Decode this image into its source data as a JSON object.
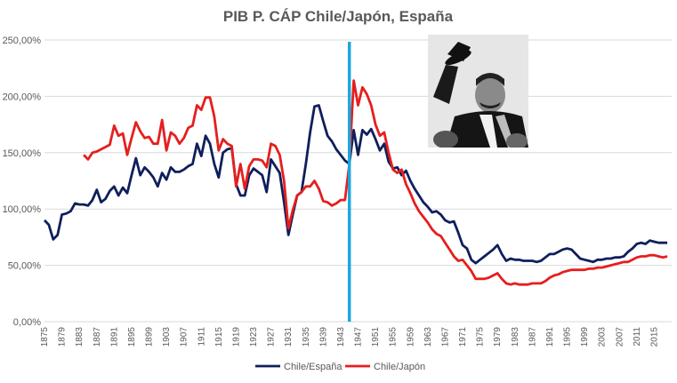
{
  "chart_data": {
    "type": "line",
    "title": "PIB P. CÁP Chile/Japón, España",
    "xlabel": "",
    "ylabel": "",
    "xlim": [
      1875,
      2019
    ],
    "ylim": [
      0,
      2.5
    ],
    "y_ticks": [
      "0,00%",
      "50,00%",
      "100,00%",
      "150,00%",
      "200,00%",
      "250,00%"
    ],
    "y_tick_values": [
      0,
      0.5,
      1.0,
      1.5,
      2.0,
      2.5
    ],
    "x_ticks": [
      "1875",
      "1879",
      "1883",
      "1887",
      "1891",
      "1895",
      "1899",
      "1903",
      "1907",
      "1911",
      "1915",
      "1919",
      "1923",
      "1927",
      "1931",
      "1935",
      "1939",
      "1943",
      "1947",
      "1951",
      "1955",
      "1959",
      "1963",
      "1967",
      "1971",
      "1975",
      "1979",
      "1983",
      "1987",
      "1991",
      "1995",
      "1999",
      "2003",
      "2007",
      "2011",
      "2015"
    ],
    "grid": true,
    "legend_position": "bottom",
    "vertical_marker": {
      "year": 1945,
      "color": "#1FA6DC"
    },
    "series": [
      {
        "name": "Chile/España",
        "color": "#0F1F5C",
        "points": [
          [
            1875,
            0.9
          ],
          [
            1876,
            0.86
          ],
          [
            1877,
            0.73
          ],
          [
            1878,
            0.77
          ],
          [
            1879,
            0.95
          ],
          [
            1880,
            0.96
          ],
          [
            1881,
            0.98
          ],
          [
            1882,
            1.05
          ],
          [
            1883,
            1.04
          ],
          [
            1884,
            1.04
          ],
          [
            1885,
            1.03
          ],
          [
            1886,
            1.08
          ],
          [
            1887,
            1.17
          ],
          [
            1888,
            1.06
          ],
          [
            1889,
            1.09
          ],
          [
            1890,
            1.16
          ],
          [
            1891,
            1.2
          ],
          [
            1892,
            1.12
          ],
          [
            1893,
            1.19
          ],
          [
            1894,
            1.14
          ],
          [
            1895,
            1.3
          ],
          [
            1896,
            1.45
          ],
          [
            1897,
            1.3
          ],
          [
            1898,
            1.37
          ],
          [
            1899,
            1.33
          ],
          [
            1900,
            1.28
          ],
          [
            1901,
            1.2
          ],
          [
            1902,
            1.32
          ],
          [
            1903,
            1.26
          ],
          [
            1904,
            1.37
          ],
          [
            1905,
            1.33
          ],
          [
            1906,
            1.33
          ],
          [
            1907,
            1.35
          ],
          [
            1908,
            1.38
          ],
          [
            1909,
            1.4
          ],
          [
            1910,
            1.58
          ],
          [
            1911,
            1.47
          ],
          [
            1912,
            1.65
          ],
          [
            1913,
            1.58
          ],
          [
            1914,
            1.4
          ],
          [
            1915,
            1.28
          ],
          [
            1916,
            1.5
          ],
          [
            1917,
            1.53
          ],
          [
            1918,
            1.54
          ],
          [
            1919,
            1.22
          ],
          [
            1920,
            1.12
          ],
          [
            1921,
            1.12
          ],
          [
            1922,
            1.3
          ],
          [
            1923,
            1.36
          ],
          [
            1924,
            1.33
          ],
          [
            1925,
            1.3
          ],
          [
            1926,
            1.15
          ],
          [
            1927,
            1.44
          ],
          [
            1928,
            1.38
          ],
          [
            1929,
            1.32
          ],
          [
            1930,
            1.06
          ],
          [
            1931,
            0.77
          ],
          [
            1932,
            0.95
          ],
          [
            1933,
            1.12
          ],
          [
            1934,
            1.15
          ],
          [
            1935,
            1.4
          ],
          [
            1936,
            1.68
          ],
          [
            1937,
            1.91
          ],
          [
            1938,
            1.92
          ],
          [
            1939,
            1.78
          ],
          [
            1940,
            1.65
          ],
          [
            1941,
            1.6
          ],
          [
            1942,
            1.53
          ],
          [
            1943,
            1.48
          ],
          [
            1944,
            1.43
          ],
          [
            1945,
            1.4
          ],
          [
            1946,
            1.7
          ],
          [
            1947,
            1.48
          ],
          [
            1948,
            1.7
          ],
          [
            1949,
            1.66
          ],
          [
            1950,
            1.71
          ],
          [
            1951,
            1.62
          ],
          [
            1952,
            1.52
          ],
          [
            1953,
            1.58
          ],
          [
            1954,
            1.42
          ],
          [
            1955,
            1.36
          ],
          [
            1956,
            1.37
          ],
          [
            1957,
            1.3
          ],
          [
            1958,
            1.34
          ],
          [
            1959,
            1.25
          ],
          [
            1960,
            1.18
          ],
          [
            1961,
            1.12
          ],
          [
            1962,
            1.06
          ],
          [
            1963,
            1.02
          ],
          [
            1964,
            0.97
          ],
          [
            1965,
            0.98
          ],
          [
            1966,
            0.95
          ],
          [
            1967,
            0.9
          ],
          [
            1968,
            0.88
          ],
          [
            1969,
            0.89
          ],
          [
            1970,
            0.79
          ],
          [
            1971,
            0.68
          ],
          [
            1972,
            0.65
          ],
          [
            1973,
            0.55
          ],
          [
            1974,
            0.52
          ],
          [
            1975,
            0.55
          ],
          [
            1976,
            0.58
          ],
          [
            1977,
            0.61
          ],
          [
            1978,
            0.64
          ],
          [
            1979,
            0.68
          ],
          [
            1980,
            0.6
          ],
          [
            1981,
            0.54
          ],
          [
            1982,
            0.56
          ],
          [
            1983,
            0.55
          ],
          [
            1984,
            0.55
          ],
          [
            1985,
            0.54
          ],
          [
            1986,
            0.54
          ],
          [
            1987,
            0.54
          ],
          [
            1988,
            0.53
          ],
          [
            1989,
            0.54
          ],
          [
            1990,
            0.57
          ],
          [
            1991,
            0.6
          ],
          [
            1992,
            0.6
          ],
          [
            1993,
            0.62
          ],
          [
            1994,
            0.64
          ],
          [
            1995,
            0.65
          ],
          [
            1996,
            0.64
          ],
          [
            1997,
            0.6
          ],
          [
            1998,
            0.56
          ],
          [
            1999,
            0.55
          ],
          [
            2000,
            0.54
          ],
          [
            2001,
            0.53
          ],
          [
            2002,
            0.55
          ],
          [
            2003,
            0.55
          ],
          [
            2004,
            0.56
          ],
          [
            2005,
            0.56
          ],
          [
            2006,
            0.57
          ],
          [
            2007,
            0.57
          ],
          [
            2008,
            0.58
          ],
          [
            2009,
            0.62
          ],
          [
            2010,
            0.65
          ],
          [
            2011,
            0.69
          ],
          [
            2012,
            0.7
          ],
          [
            2013,
            0.69
          ],
          [
            2014,
            0.72
          ],
          [
            2015,
            0.71
          ],
          [
            2016,
            0.7
          ],
          [
            2017,
            0.7
          ],
          [
            2018,
            0.7
          ]
        ]
      },
      {
        "name": "Chile/Japón",
        "color": "#E61E1E",
        "points": [
          [
            1884,
            1.48
          ],
          [
            1885,
            1.44
          ],
          [
            1886,
            1.5
          ],
          [
            1887,
            1.51
          ],
          [
            1888,
            1.53
          ],
          [
            1889,
            1.55
          ],
          [
            1890,
            1.57
          ],
          [
            1891,
            1.74
          ],
          [
            1892,
            1.65
          ],
          [
            1893,
            1.67
          ],
          [
            1894,
            1.48
          ],
          [
            1895,
            1.63
          ],
          [
            1896,
            1.77
          ],
          [
            1897,
            1.69
          ],
          [
            1898,
            1.63
          ],
          [
            1899,
            1.64
          ],
          [
            1900,
            1.58
          ],
          [
            1901,
            1.58
          ],
          [
            1902,
            1.79
          ],
          [
            1903,
            1.52
          ],
          [
            1904,
            1.68
          ],
          [
            1905,
            1.65
          ],
          [
            1906,
            1.58
          ],
          [
            1907,
            1.63
          ],
          [
            1908,
            1.72
          ],
          [
            1909,
            1.74
          ],
          [
            1910,
            1.92
          ],
          [
            1911,
            1.88
          ],
          [
            1912,
            1.99
          ],
          [
            1913,
            1.99
          ],
          [
            1914,
            1.82
          ],
          [
            1915,
            1.52
          ],
          [
            1916,
            1.62
          ],
          [
            1917,
            1.58
          ],
          [
            1918,
            1.56
          ],
          [
            1919,
            1.2
          ],
          [
            1920,
            1.4
          ],
          [
            1921,
            1.18
          ],
          [
            1922,
            1.38
          ],
          [
            1923,
            1.44
          ],
          [
            1924,
            1.44
          ],
          [
            1925,
            1.43
          ],
          [
            1926,
            1.37
          ],
          [
            1927,
            1.58
          ],
          [
            1928,
            1.56
          ],
          [
            1929,
            1.48
          ],
          [
            1930,
            1.25
          ],
          [
            1931,
            0.83
          ],
          [
            1932,
            0.99
          ],
          [
            1933,
            1.12
          ],
          [
            1934,
            1.15
          ],
          [
            1935,
            1.2
          ],
          [
            1936,
            1.2
          ],
          [
            1937,
            1.25
          ],
          [
            1938,
            1.18
          ],
          [
            1939,
            1.07
          ],
          [
            1940,
            1.06
          ],
          [
            1941,
            1.03
          ],
          [
            1942,
            1.05
          ],
          [
            1943,
            1.08
          ],
          [
            1944,
            1.08
          ],
          [
            1945,
            1.4
          ],
          [
            1946,
            2.14
          ],
          [
            1947,
            1.92
          ],
          [
            1948,
            2.08
          ],
          [
            1949,
            2.02
          ],
          [
            1950,
            1.92
          ],
          [
            1951,
            1.75
          ],
          [
            1952,
            1.65
          ],
          [
            1953,
            1.68
          ],
          [
            1954,
            1.5
          ],
          [
            1955,
            1.35
          ],
          [
            1956,
            1.32
          ],
          [
            1957,
            1.35
          ],
          [
            1958,
            1.22
          ],
          [
            1959,
            1.14
          ],
          [
            1960,
            1.05
          ],
          [
            1961,
            0.98
          ],
          [
            1962,
            0.93
          ],
          [
            1963,
            0.88
          ],
          [
            1964,
            0.82
          ],
          [
            1965,
            0.78
          ],
          [
            1966,
            0.76
          ],
          [
            1967,
            0.7
          ],
          [
            1968,
            0.64
          ],
          [
            1969,
            0.58
          ],
          [
            1970,
            0.54
          ],
          [
            1971,
            0.55
          ],
          [
            1972,
            0.5
          ],
          [
            1973,
            0.45
          ],
          [
            1974,
            0.38
          ],
          [
            1975,
            0.38
          ],
          [
            1976,
            0.38
          ],
          [
            1977,
            0.39
          ],
          [
            1978,
            0.41
          ],
          [
            1979,
            0.43
          ],
          [
            1980,
            0.38
          ],
          [
            1981,
            0.34
          ],
          [
            1982,
            0.33
          ],
          [
            1983,
            0.34
          ],
          [
            1984,
            0.33
          ],
          [
            1985,
            0.33
          ],
          [
            1986,
            0.33
          ],
          [
            1987,
            0.34
          ],
          [
            1988,
            0.34
          ],
          [
            1989,
            0.34
          ],
          [
            1990,
            0.36
          ],
          [
            1991,
            0.39
          ],
          [
            1992,
            0.41
          ],
          [
            1993,
            0.42
          ],
          [
            1994,
            0.44
          ],
          [
            1995,
            0.45
          ],
          [
            1996,
            0.46
          ],
          [
            1997,
            0.46
          ],
          [
            1998,
            0.46
          ],
          [
            1999,
            0.46
          ],
          [
            2000,
            0.47
          ],
          [
            2001,
            0.47
          ],
          [
            2002,
            0.48
          ],
          [
            2003,
            0.48
          ],
          [
            2004,
            0.49
          ],
          [
            2005,
            0.5
          ],
          [
            2006,
            0.51
          ],
          [
            2007,
            0.52
          ],
          [
            2008,
            0.53
          ],
          [
            2009,
            0.53
          ],
          [
            2010,
            0.55
          ],
          [
            2011,
            0.57
          ],
          [
            2012,
            0.58
          ],
          [
            2013,
            0.58
          ],
          [
            2014,
            0.59
          ],
          [
            2015,
            0.59
          ],
          [
            2016,
            0.58
          ],
          [
            2017,
            0.57
          ],
          [
            2018,
            0.58
          ]
        ]
      }
    ]
  }
}
